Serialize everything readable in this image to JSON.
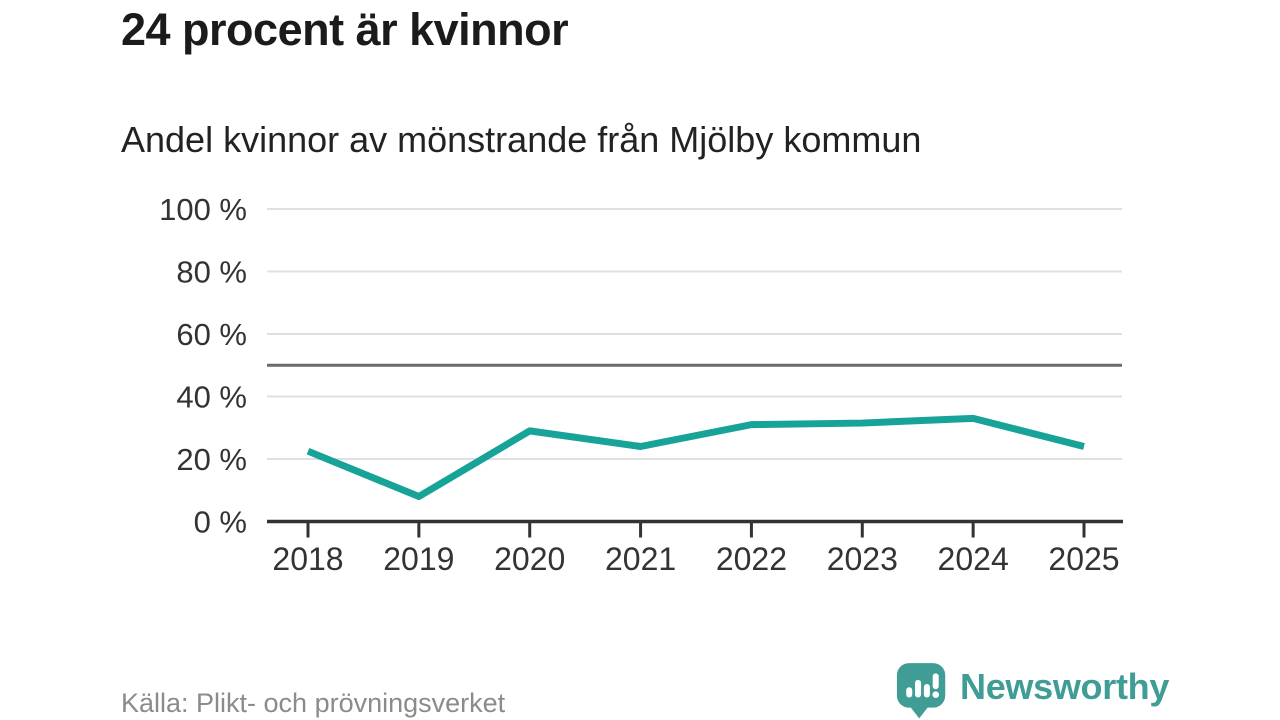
{
  "header": {
    "title": "24 procent är kvinnor",
    "subtitle": "Andel kvinnor av mönstrande från Mjölby kommun"
  },
  "chart_data": {
    "type": "line",
    "title": "24 procent är kvinnor",
    "subtitle": "Andel kvinnor av mönstrande från Mjölby kommun",
    "categories": [
      "2018",
      "2019",
      "2020",
      "2021",
      "2022",
      "2023",
      "2024",
      "2025"
    ],
    "series": [
      {
        "name": "Andel kvinnor av mönstrande",
        "values": [
          22.5,
          8,
          29,
          24,
          31,
          31.5,
          33,
          24
        ]
      }
    ],
    "unit": "%",
    "xlabel": "",
    "ylabel": "",
    "ylim": [
      0,
      100
    ],
    "yticks": [
      0,
      20,
      40,
      60,
      80,
      100
    ],
    "ytick_suffix": " %",
    "reference_line": 50,
    "grid": "horizontal",
    "legend": "none",
    "colors": {
      "line": "#17a398",
      "grid": "#e0e0e0",
      "reference": "#6a6a6a",
      "axis": "#333333",
      "tick_label": "#333333"
    }
  },
  "footer": {
    "source": "Källa: Plikt- och prövningsverket",
    "brand": "Newsworthy",
    "brand_color": "#3f9d96",
    "logo_icon": "bar-chart-speech-bubble-icon"
  }
}
